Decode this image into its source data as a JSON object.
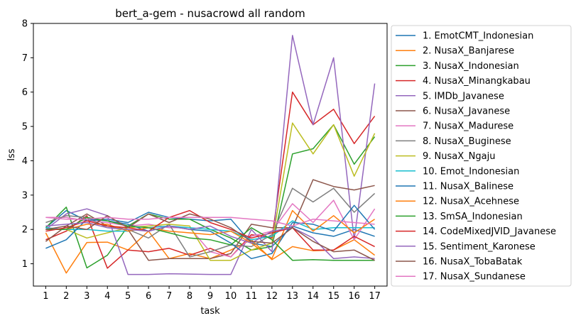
{
  "chart_data": {
    "type": "line",
    "title": "bert_a-gem - nusacrowd all random",
    "xlabel": "task",
    "ylabel": "lss",
    "x": [
      1,
      2,
      3,
      4,
      5,
      6,
      7,
      8,
      9,
      10,
      11,
      12,
      13,
      14,
      15,
      16,
      17
    ],
    "xlim": [
      0.4,
      17.6
    ],
    "ylim": [
      0.35,
      8.0
    ],
    "yticks": [
      1,
      2,
      3,
      4,
      5,
      6,
      7,
      8
    ],
    "grid": false,
    "legend_position": "right-outside",
    "series": [
      {
        "name": "1. EmotCMT_Indonesian",
        "color": "#1f77b4",
        "values": [
          2.05,
          2.55,
          2.25,
          2.3,
          2.2,
          2.5,
          2.35,
          2.3,
          2.25,
          2.3,
          1.6,
          1.5,
          2.1,
          1.9,
          1.8,
          2.0,
          1.8
        ]
      },
      {
        "name": "2. NusaX_Banjarese",
        "color": "#ff7f0e",
        "values": [
          1.9,
          0.73,
          1.62,
          1.63,
          1.4,
          1.95,
          1.15,
          1.3,
          1.15,
          1.4,
          1.7,
          1.12,
          1.5,
          1.38,
          1.4,
          1.7,
          1.25
        ]
      },
      {
        "name": "3. NusaX_Indonesian",
        "color": "#2ca02c",
        "values": [
          2.05,
          2.65,
          0.88,
          1.25,
          2.1,
          2.45,
          2.3,
          2.3,
          2.0,
          1.75,
          1.4,
          1.5,
          4.2,
          4.35,
          5.05,
          3.9,
          4.7
        ]
      },
      {
        "name": "4. NusaX_Minangkabau",
        "color": "#d62728",
        "values": [
          1.7,
          1.95,
          2.4,
          0.87,
          1.4,
          1.35,
          1.45,
          1.25,
          1.45,
          1.2,
          1.85,
          1.75,
          6.0,
          5.05,
          5.5,
          4.5,
          5.3
        ]
      },
      {
        "name": "5. IMDb_Javanese",
        "color": "#9467bd",
        "values": [
          2.0,
          2.45,
          2.6,
          2.4,
          0.69,
          0.69,
          0.71,
          0.7,
          0.69,
          0.69,
          2.0,
          1.35,
          7.65,
          5.05,
          7.0,
          1.7,
          6.25
        ]
      },
      {
        "name": "6. NusaX_Javanese",
        "color": "#8c564b",
        "values": [
          1.65,
          2.1,
          2.45,
          2.1,
          2.0,
          1.1,
          1.15,
          1.15,
          1.15,
          1.3,
          2.15,
          2.05,
          2.05,
          3.45,
          3.25,
          3.15,
          3.28
        ]
      },
      {
        "name": "7. NusaX_Madurese",
        "color": "#e377c2",
        "values": [
          2.35,
          2.35,
          2.25,
          2.2,
          2.1,
          2.15,
          2.05,
          2.05,
          1.35,
          1.2,
          1.8,
          1.95,
          2.75,
          2.2,
          2.85,
          1.7,
          2.6
        ]
      },
      {
        "name": "8. NusaX_Buginese",
        "color": "#7f7f7f",
        "values": [
          2.2,
          2.4,
          2.35,
          2.05,
          2.0,
          1.75,
          2.15,
          1.2,
          1.35,
          1.55,
          1.5,
          1.85,
          3.2,
          2.8,
          3.2,
          2.5,
          3.05
        ]
      },
      {
        "name": "9. NusaX_Ngaju",
        "color": "#bcbd22",
        "values": [
          2.0,
          2.0,
          1.75,
          1.9,
          2.05,
          2.1,
          2.15,
          2.1,
          1.1,
          1.1,
          1.4,
          1.6,
          5.1,
          4.2,
          5.05,
          3.55,
          4.8
        ]
      },
      {
        "name": "10. Emot_Indonesian",
        "color": "#17becf",
        "values": [
          2.05,
          2.0,
          2.0,
          1.95,
          1.95,
          2.05,
          2.1,
          2.05,
          2.0,
          1.95,
          1.7,
          1.8,
          2.25,
          2.0,
          2.05,
          2.05,
          2.05
        ]
      },
      {
        "name": "11. NusaX_Balinese",
        "color": "#1f77b4",
        "values": [
          1.45,
          1.7,
          2.3,
          2.25,
          2.15,
          1.95,
          2.1,
          2.0,
          1.95,
          1.6,
          1.15,
          1.3,
          2.2,
          2.15,
          1.95,
          2.7,
          2.0
        ]
      },
      {
        "name": "12. NusaX_Acehnese",
        "color": "#ff7f0e",
        "values": [
          2.0,
          2.0,
          2.15,
          2.15,
          1.95,
          2.05,
          1.95,
          1.9,
          1.85,
          1.95,
          1.6,
          1.15,
          2.55,
          1.95,
          2.4,
          1.9,
          2.3
        ]
      },
      {
        "name": "13. SmSA_Indonesian",
        "color": "#2ca02c",
        "values": [
          2.0,
          2.0,
          2.35,
          2.25,
          2.1,
          2.05,
          1.9,
          1.75,
          1.7,
          1.55,
          2.05,
          1.7,
          1.1,
          1.12,
          1.1,
          1.1,
          1.1
        ]
      },
      {
        "name": "14. CodeMixedJVID_Javanese",
        "color": "#d62728",
        "values": [
          1.95,
          2.05,
          2.25,
          2.1,
          2.05,
          1.95,
          2.35,
          2.55,
          2.2,
          2.0,
          1.75,
          1.9,
          2.05,
          1.4,
          1.4,
          1.8,
          1.5
        ]
      },
      {
        "name": "15. Sentiment_Karonese",
        "color": "#9467bd",
        "values": [
          2.1,
          2.15,
          2.2,
          2.05,
          2.0,
          1.95,
          2.1,
          2.0,
          2.1,
          1.8,
          1.6,
          1.95,
          2.05,
          1.75,
          1.15,
          1.2,
          1.15
        ]
      },
      {
        "name": "16. NusaX_TobaBatak",
        "color": "#8c564b",
        "values": [
          2.0,
          2.1,
          2.0,
          2.4,
          2.05,
          2.45,
          2.2,
          2.45,
          2.3,
          2.05,
          1.65,
          1.6,
          2.05,
          1.65,
          1.35,
          1.4,
          1.1
        ]
      },
      {
        "name": "17. NusaX_Sundanese",
        "color": "#e377c2",
        "values": [
          2.35,
          2.3,
          2.3,
          2.35,
          2.3,
          2.3,
          2.35,
          2.35,
          2.35,
          2.35,
          2.3,
          2.25,
          2.1,
          2.3,
          2.25,
          2.2,
          2.15
        ]
      }
    ]
  }
}
